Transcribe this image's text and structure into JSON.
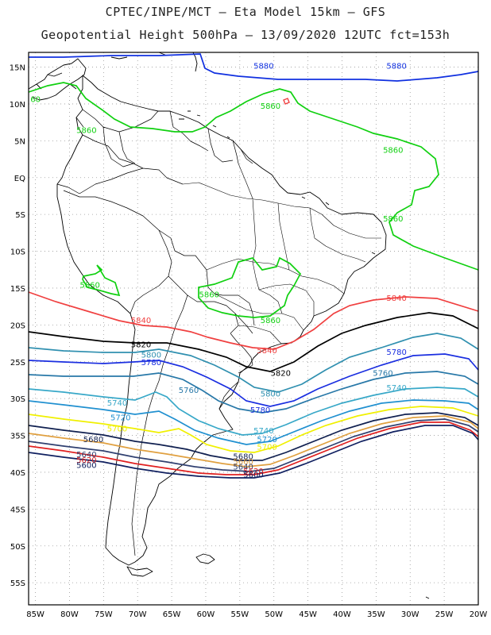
{
  "header": {
    "line1": "CPTEC/INPE/MCT –  Eta Model 15km – GFS",
    "line2": "Geopotential Height 500hPa – 13/09/2020 12UTC fct=153h"
  },
  "axes": {
    "lat_labels": [
      "15N",
      "10N",
      "5N",
      "EQ",
      "5S",
      "10S",
      "15S",
      "20S",
      "25S",
      "30S",
      "35S",
      "40S",
      "45S",
      "50S",
      "55S"
    ],
    "lon_labels": [
      "85W",
      "80W",
      "75W",
      "70W",
      "65W",
      "60W",
      "55W",
      "50W",
      "45W",
      "40W",
      "35W",
      "30W",
      "25W",
      "20W"
    ],
    "lat_range": [
      17,
      -58
    ],
    "lon_range": [
      -86,
      -20
    ],
    "grid": "dotted"
  },
  "colors": {
    "c5880": "#1030e0",
    "c5860": "#10d010",
    "c5840": "#f04040",
    "c5820": "#000000",
    "c5800": "#3090b0",
    "c5780": "#1a2ee0",
    "c5760": "#2878a8",
    "c5740": "#38a8c8",
    "c5720": "#2090d0",
    "c5700": "#f0f000",
    "c5680": "#102050",
    "c5660": "#e0a040",
    "c5640": "#304070",
    "c5620": "#e02020",
    "c5600": "#102060"
  },
  "contour_labels": [
    {
      "text": "5880",
      "color": "c5880",
      "lon": -51.5,
      "lat": 15.2
    },
    {
      "text": "5880",
      "color": "c5880",
      "lon": -32.0,
      "lat": 15.2
    },
    {
      "text": "5860",
      "color": "c5860",
      "lon": -50.5,
      "lat": 9.8
    },
    {
      "text": "5860",
      "color": "c5860",
      "lon": -77.5,
      "lat": 6.5
    },
    {
      "text": "5860",
      "color": "c5860",
      "lon": -32.5,
      "lat": 3.8
    },
    {
      "text": "5860",
      "color": "c5860",
      "lon": -32.5,
      "lat": -5.5
    },
    {
      "text": "5860",
      "color": "c5860",
      "lon": -77.0,
      "lat": -14.5
    },
    {
      "text": "5860",
      "color": "c5860",
      "lon": -59.5,
      "lat": -15.8
    },
    {
      "text": "5860",
      "color": "c5860",
      "lon": -50.5,
      "lat": -19.3
    },
    {
      "text": "5840",
      "color": "c5840",
      "lon": -69.5,
      "lat": -19.3
    },
    {
      "text": "5840",
      "color": "c5840",
      "lon": -32.0,
      "lat": -16.3
    },
    {
      "text": "5840",
      "color": "c5840",
      "lon": -51.0,
      "lat": -23.4
    },
    {
      "text": "5820",
      "color": "c5820",
      "lon": -69.5,
      "lat": -22.6
    },
    {
      "text": "5820",
      "color": "c5820",
      "lon": -49.0,
      "lat": -26.5
    },
    {
      "text": "5800",
      "color": "c5800",
      "lon": -68.0,
      "lat": -24.0
    },
    {
      "text": "5800",
      "color": "c5800",
      "lon": -50.5,
      "lat": -29.3
    },
    {
      "text": "5780",
      "color": "c5780",
      "lon": -68.0,
      "lat": -25.0
    },
    {
      "text": "5780",
      "color": "c5780",
      "lon": -32.0,
      "lat": -23.6
    },
    {
      "text": "5780",
      "color": "c5780",
      "lon": -52.0,
      "lat": -31.5
    },
    {
      "text": "5760",
      "color": "c5760",
      "lon": -62.5,
      "lat": -28.8
    },
    {
      "text": "5760",
      "color": "c5760",
      "lon": -34.0,
      "lat": -26.5
    },
    {
      "text": "5740",
      "color": "c5740",
      "lon": -73.0,
      "lat": -30.5
    },
    {
      "text": "5740",
      "color": "c5740",
      "lon": -32.0,
      "lat": -28.5
    },
    {
      "text": "5740",
      "color": "c5740",
      "lon": -51.5,
      "lat": -34.3
    },
    {
      "text": "5720",
      "color": "c5720",
      "lon": -72.5,
      "lat": -32.5
    },
    {
      "text": "5720",
      "color": "c5720",
      "lon": -51.0,
      "lat": -35.5
    },
    {
      "text": "5700",
      "color": "c5700",
      "lon": -73.0,
      "lat": -34.0
    },
    {
      "text": "5700",
      "color": "c5700",
      "lon": -51.0,
      "lat": -36.5
    },
    {
      "text": "5680",
      "color": "c5680",
      "lon": -76.5,
      "lat": -35.5
    },
    {
      "text": "5680",
      "color": "c5680",
      "lon": -54.5,
      "lat": -37.8
    },
    {
      "text": "5660",
      "color": "c5660",
      "lon": -54.5,
      "lat": -38.5
    },
    {
      "text": "5640",
      "color": "c5640",
      "lon": -77.5,
      "lat": -37.5
    },
    {
      "text": "5640",
      "color": "c5640",
      "lon": -54.5,
      "lat": -39.2
    },
    {
      "text": "5620",
      "color": "c5620",
      "lon": -77.5,
      "lat": -38.3
    },
    {
      "text": "5620",
      "color": "c5620",
      "lon": -53.0,
      "lat": -39.8
    },
    {
      "text": "5600",
      "color": "c5600",
      "lon": -77.5,
      "lat": -39.0
    },
    {
      "text": "5600",
      "color": "c5600",
      "lon": -53.0,
      "lat": -40.3
    },
    {
      "text": "60",
      "color": "c5860",
      "lon": -85.0,
      "lat": 10.7
    }
  ]
}
